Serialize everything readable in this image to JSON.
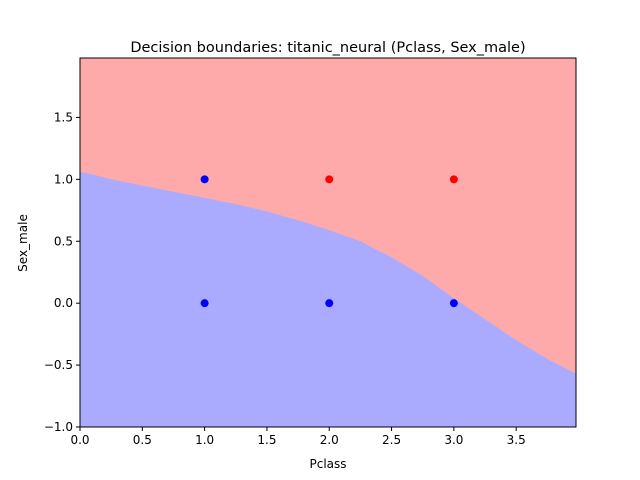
{
  "chart_data": {
    "type": "scatter",
    "title": "Decision boundaries: titanic_neural (Pclass, Sex_male)",
    "xlabel": "Pclass",
    "ylabel": "Sex_male",
    "xlim": [
      0.0,
      3.98
    ],
    "ylim": [
      -1.0,
      1.98
    ],
    "xticks": [
      "0.0",
      "0.5",
      "1.0",
      "1.5",
      "2.0",
      "2.5",
      "3.0",
      "3.5"
    ],
    "xtick_values": [
      0.0,
      0.5,
      1.0,
      1.5,
      2.0,
      2.5,
      3.0,
      3.5
    ],
    "yticks": [
      "−1.0",
      "−0.5",
      "0.0",
      "0.5",
      "1.0",
      "1.5"
    ],
    "ytick_values": [
      -1.0,
      -0.5,
      0.0,
      0.5,
      1.0,
      1.5
    ],
    "regions": {
      "colors": {
        "upper": "#ffaaaa",
        "lower": "#aaaaff"
      },
      "boundary": {
        "x": [
          0.0,
          0.1,
          0.25,
          0.5,
          0.75,
          1.0,
          1.25,
          1.5,
          1.75,
          2.0,
          2.25,
          2.5,
          2.75,
          3.0,
          3.25,
          3.5,
          3.75,
          3.98
        ],
        "y": [
          1.06,
          1.04,
          1.0,
          0.95,
          0.9,
          0.85,
          0.8,
          0.74,
          0.67,
          0.59,
          0.5,
          0.37,
          0.22,
          0.04,
          -0.13,
          -0.3,
          -0.45,
          -0.57
        ]
      }
    },
    "points": [
      {
        "x": 1,
        "y": 1,
        "color": "#0000ff"
      },
      {
        "x": 2,
        "y": 1,
        "color": "#ff0000"
      },
      {
        "x": 3,
        "y": 1,
        "color": "#ff0000"
      },
      {
        "x": 1,
        "y": 0,
        "color": "#0000ff"
      },
      {
        "x": 2,
        "y": 0,
        "color": "#0000ff"
      },
      {
        "x": 3,
        "y": 0,
        "color": "#0000ff"
      }
    ]
  }
}
